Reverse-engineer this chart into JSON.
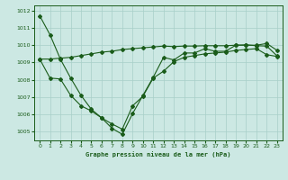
{
  "title": "Graphe pression niveau de la mer (hPa)",
  "bg": "#cce8e3",
  "grid_color": "#a8cfc8",
  "lc": "#1a5c1a",
  "s1_y": [
    1011.7,
    1010.6,
    1009.2,
    1008.1,
    1007.1,
    1006.3,
    1005.8,
    1005.2,
    1004.85,
    1006.05,
    1007.1,
    1008.15,
    1009.3,
    1009.15,
    1009.55,
    1009.55,
    1009.8,
    1009.65,
    1009.65,
    1010.0,
    1010.0,
    1010.0,
    1010.1,
    1009.7
  ],
  "s2_y": [
    1009.2,
    1009.2,
    1009.25,
    1009.3,
    1009.4,
    1009.5,
    1009.6,
    1009.65,
    1009.75,
    1009.8,
    1009.85,
    1009.9,
    1009.95,
    1009.92,
    1009.95,
    1009.95,
    1009.97,
    1009.97,
    1009.97,
    1010.0,
    1010.02,
    1009.97,
    1009.95,
    1009.38
  ],
  "s3_y": [
    1009.2,
    1008.1,
    1008.05,
    1007.1,
    1006.5,
    1006.2,
    1005.8,
    1005.45,
    1005.15,
    1006.5,
    1007.05,
    1008.1,
    1008.5,
    1009.05,
    1009.3,
    1009.4,
    1009.5,
    1009.55,
    1009.6,
    1009.7,
    1009.75,
    1009.8,
    1009.45,
    1009.35
  ],
  "xlim": [
    -0.5,
    23.5
  ],
  "ylim": [
    1004.5,
    1012.3
  ],
  "yticks": [
    1005,
    1006,
    1007,
    1008,
    1009,
    1010,
    1011,
    1012
  ],
  "xticks": [
    0,
    1,
    2,
    3,
    4,
    5,
    6,
    7,
    8,
    9,
    10,
    11,
    12,
    13,
    14,
    15,
    16,
    17,
    18,
    19,
    20,
    21,
    22,
    23
  ]
}
